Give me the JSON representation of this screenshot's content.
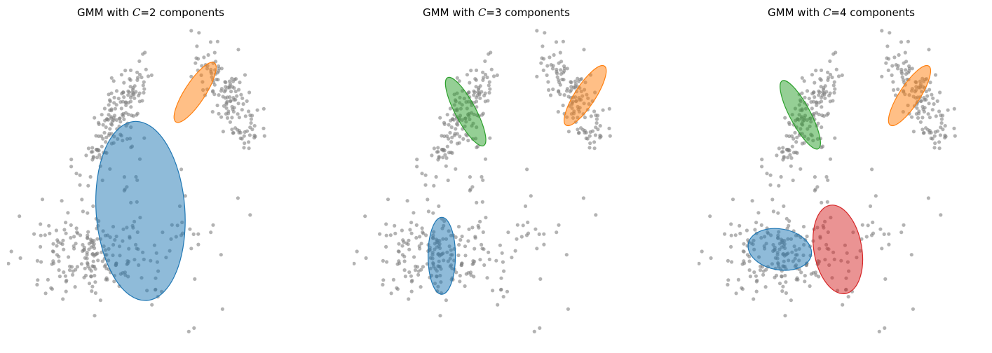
{
  "chart_data": [
    {
      "type": "scatter",
      "title_prefix": "GMM with ",
      "title_var": "C",
      "title_suffix": "=2 components",
      "point_color": "#808080",
      "ellipses": [
        {
          "cx": 0,
          "cy": -1.8,
          "rx": 1.3,
          "ry": 2.8,
          "angle": -4,
          "color": "#1f77b4"
        },
        {
          "cx": 1.6,
          "cy": 1.9,
          "rx": 0.3,
          "ry": 1.1,
          "angle": 33,
          "color": "#ff7f0e"
        }
      ]
    },
    {
      "type": "scatter",
      "title_prefix": "GMM with ",
      "title_var": "C",
      "title_suffix": "=3 components",
      "point_color": "#808080",
      "ellipses": [
        {
          "cx": -1.3,
          "cy": -3.2,
          "rx": 0.4,
          "ry": 1.2,
          "angle": 0,
          "color": "#1f77b4"
        },
        {
          "cx": 2.9,
          "cy": 1.8,
          "rx": 0.3,
          "ry": 1.1,
          "angle": 33,
          "color": "#ff7f0e"
        },
        {
          "cx": -0.6,
          "cy": 1.3,
          "rx": 0.3,
          "ry": 1.2,
          "angle": -28,
          "color": "#2ca02c"
        }
      ]
    },
    {
      "type": "scatter",
      "title_prefix": "GMM with ",
      "title_var": "C",
      "title_suffix": "=4 components",
      "point_color": "#808080",
      "ellipses": [
        {
          "cx": -1.5,
          "cy": -3.0,
          "rx": 0.6,
          "ry": 1.0,
          "angle": -80,
          "color": "#1f77b4"
        },
        {
          "cx": 2.3,
          "cy": 1.8,
          "rx": 0.3,
          "ry": 1.1,
          "angle": 33,
          "color": "#ff7f0e"
        },
        {
          "cx": -0.9,
          "cy": 1.2,
          "rx": 0.3,
          "ry": 1.2,
          "angle": -28,
          "color": "#2ca02c"
        },
        {
          "cx": 0.2,
          "cy": -3.0,
          "rx": 0.7,
          "ry": 1.4,
          "angle": -10,
          "color": "#d62728"
        }
      ]
    }
  ]
}
